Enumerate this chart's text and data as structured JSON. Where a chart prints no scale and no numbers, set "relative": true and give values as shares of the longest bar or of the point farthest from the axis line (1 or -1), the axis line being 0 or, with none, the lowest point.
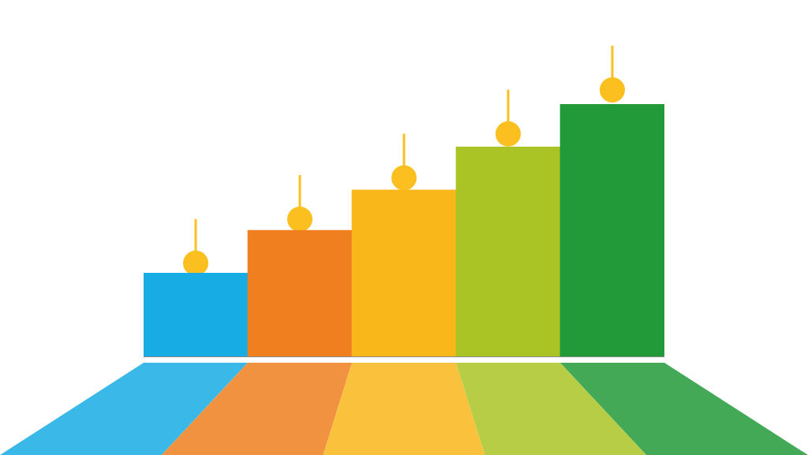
{
  "chart_data": {
    "type": "bar",
    "relative": true,
    "categories": [
      null,
      null,
      null,
      null,
      null
    ],
    "values": [
      0.33,
      0.5,
      0.66,
      0.83,
      1
    ],
    "colors": [
      "#17ace3",
      "#ef7f1f",
      "#f9b71a",
      "#a9c424",
      "#229a3a"
    ]
  }
}
